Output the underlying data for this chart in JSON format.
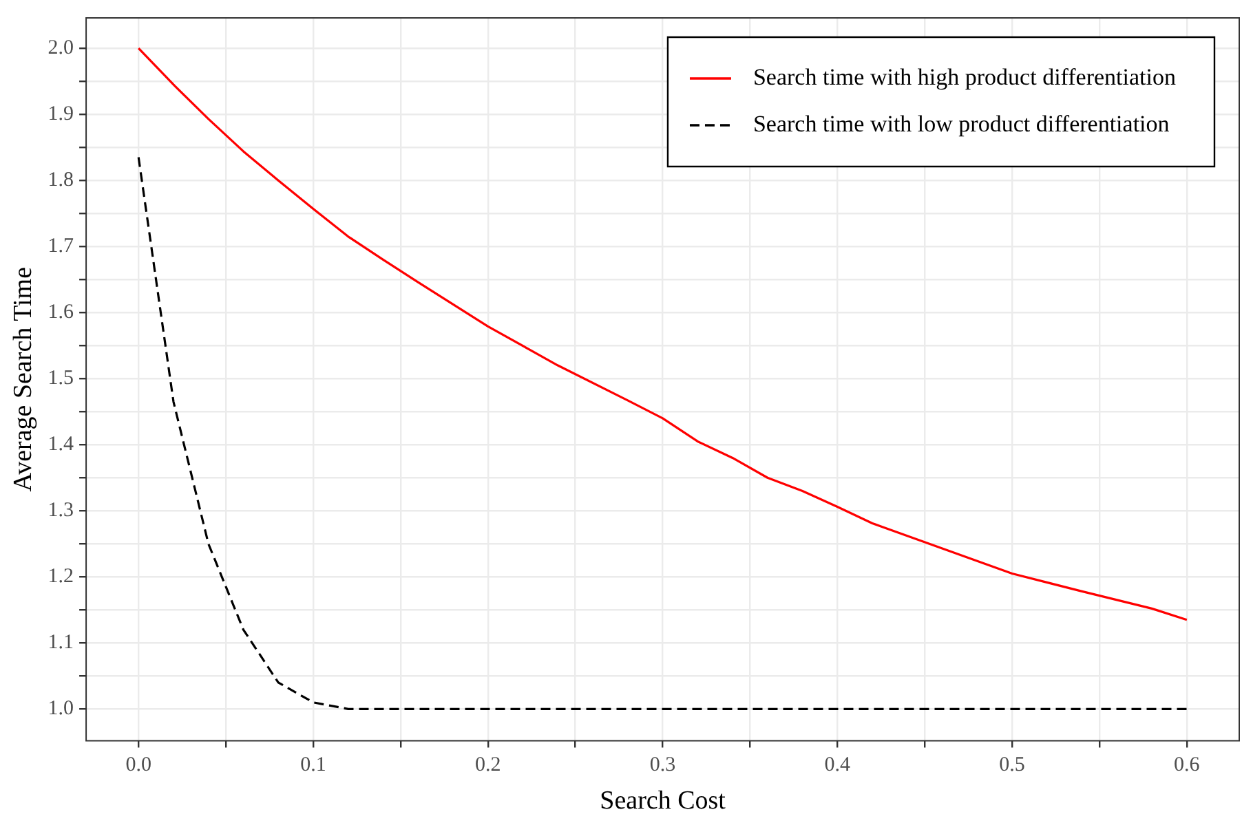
{
  "chart_data": {
    "type": "line",
    "xlabel": "Search Cost",
    "ylabel": "Average Search Time",
    "xlim": [
      -0.03,
      0.63
    ],
    "ylim": [
      0.952,
      2.046
    ],
    "xticks": [
      {
        "value": 0,
        "label": "0.0"
      },
      {
        "value": 0.05,
        "label": null
      },
      0.1,
      {
        "value": 0.15,
        "label": null
      },
      0.2,
      {
        "value": 0.25,
        "label": null
      },
      0.3,
      {
        "value": 0.35,
        "label": null
      },
      0.4,
      {
        "value": 0.45,
        "label": null
      },
      0.5,
      {
        "value": 0.55,
        "label": null
      },
      0.6
    ],
    "yticks": [
      {
        "value": 1,
        "label": "1.0"
      },
      {
        "value": 1.05,
        "label": null
      },
      1.1,
      {
        "value": 1.15,
        "label": null
      },
      1.2,
      {
        "value": 1.25,
        "label": null
      },
      1.3,
      {
        "value": 1.35,
        "label": null
      },
      1.4,
      {
        "value": 1.45,
        "label": null
      },
      1.5,
      {
        "value": 1.55,
        "label": null
      },
      1.6,
      {
        "value": 1.65,
        "label": null
      },
      1.7,
      {
        "value": 1.75,
        "label": null
      },
      1.8,
      {
        "value": 1.85,
        "label": null
      },
      1.9,
      {
        "value": 1.95,
        "label": null
      },
      {
        "value": 2,
        "label": "2.0"
      }
    ],
    "grid": true,
    "legend": "top right",
    "marker": "none",
    "x": [
      0,
      0.02,
      0.04,
      0.06,
      0.08,
      0.1,
      0.12,
      0.14,
      0.16,
      0.2,
      0.24,
      0.28,
      0.3,
      0.32,
      0.34,
      0.36,
      0.38,
      0.4,
      0.42,
      0.46,
      0.5,
      0.54,
      0.58,
      0.6
    ],
    "series": [
      {
        "name": "Search time with high product differentiation",
        "color": "#ff0000",
        "line_style": "solid",
        "values": [
          2.0,
          1.945,
          1.893,
          1.844,
          1.8,
          1.757,
          1.715,
          1.68,
          1.646,
          1.579,
          1.52,
          1.467,
          1.44,
          1.405,
          1.38,
          1.35,
          1.33,
          1.306,
          1.281,
          1.243,
          1.205,
          1.178,
          1.152,
          1.135
        ]
      },
      {
        "name": "Search time with low product differentiation",
        "color": "#000000",
        "line_style": "dashed",
        "values": [
          1.835,
          1.465,
          1.25,
          1.12,
          1.04,
          1.01,
          1.0,
          1.0,
          1.0,
          1.0,
          1.0,
          1.0,
          1.0,
          1.0,
          1.0,
          1.0,
          1.0,
          1.0,
          1.0,
          1.0,
          1.0,
          1.0,
          1.0,
          1.0
        ]
      }
    ]
  }
}
